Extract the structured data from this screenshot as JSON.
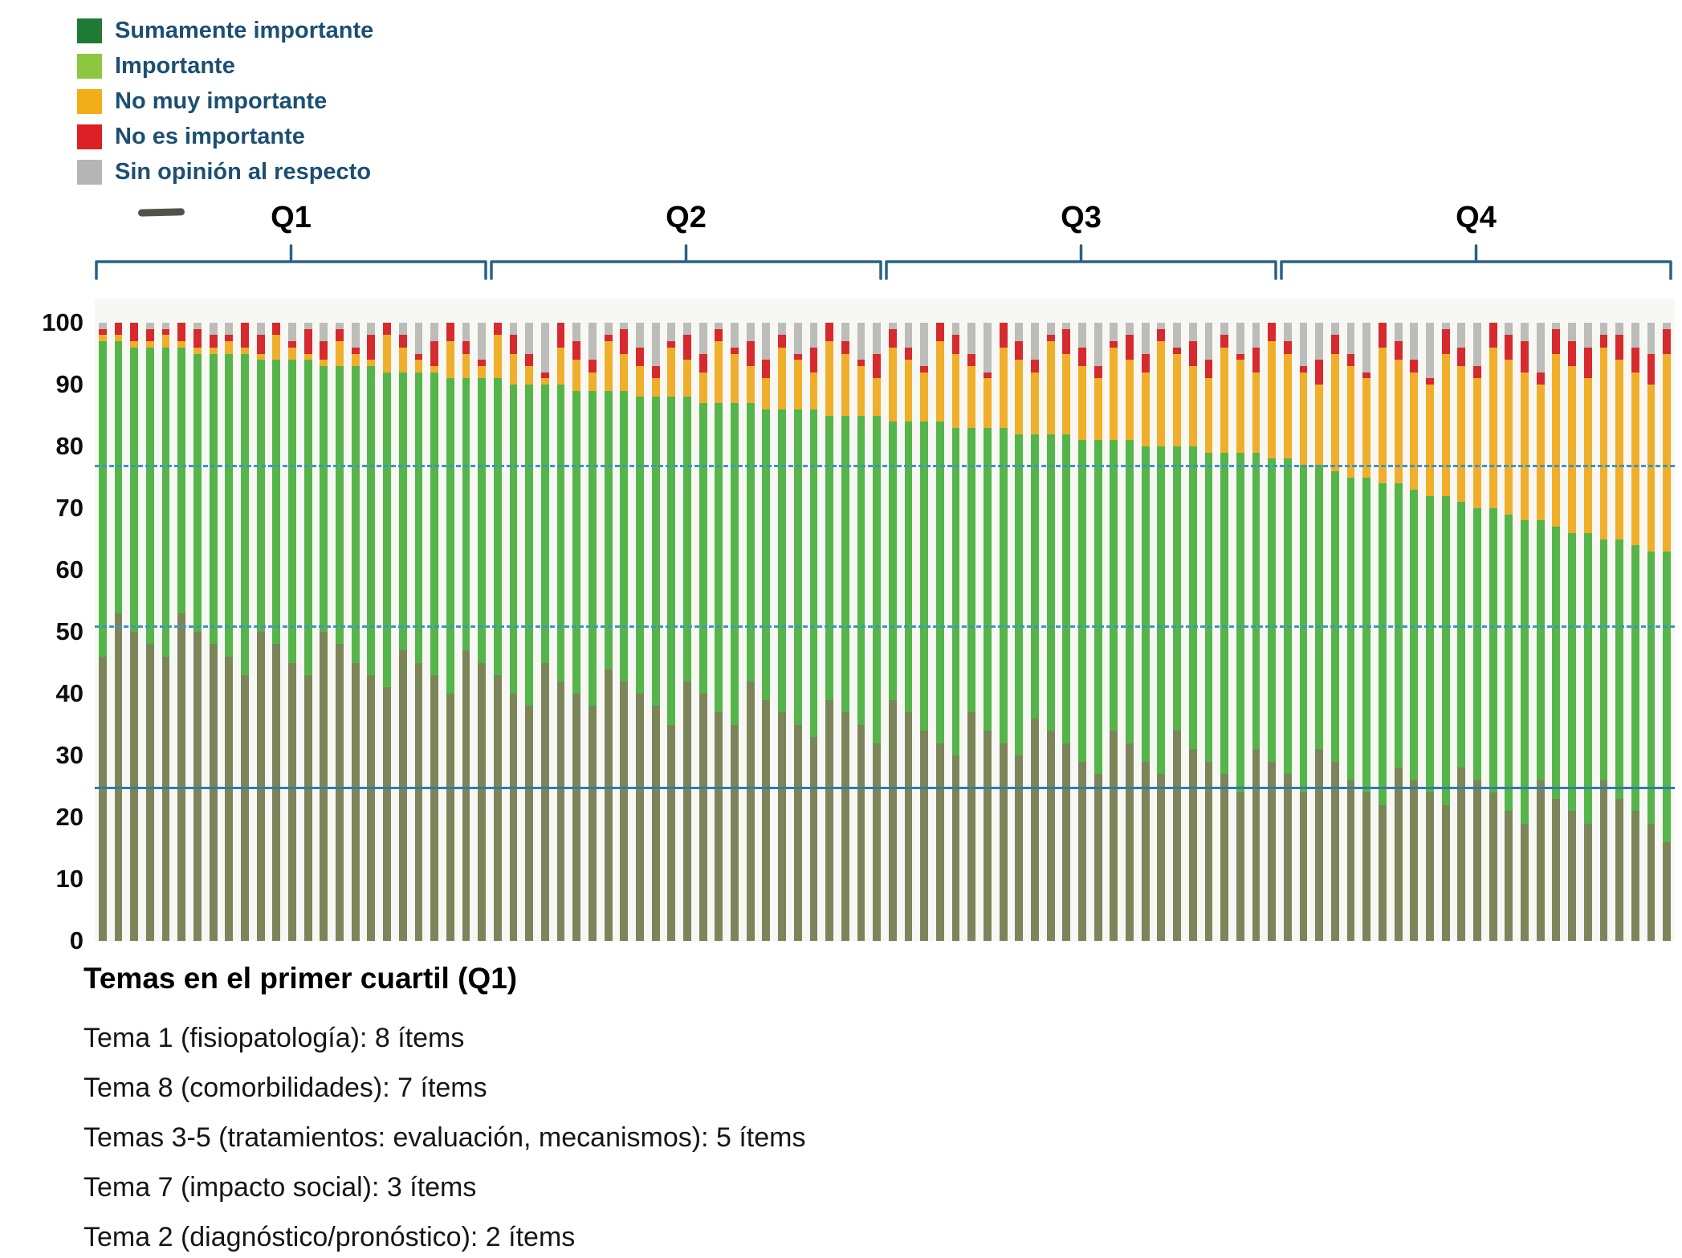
{
  "legend": {
    "items": [
      {
        "label": "Sumamente importante",
        "color": "#1e7a34"
      },
      {
        "label": "Importante",
        "color": "#8dc63f"
      },
      {
        "label": "No muy importante",
        "color": "#f2ae19"
      },
      {
        "label": "No es importante",
        "color": "#dd2026"
      },
      {
        "label": "Sin opinión al respecto",
        "color": "#b5b5b5"
      }
    ]
  },
  "chart_data": {
    "type": "bar",
    "stacked": true,
    "values_unit": "percent",
    "ylim": [
      0,
      100
    ],
    "yticks": [
      0,
      10,
      20,
      30,
      40,
      50,
      60,
      70,
      80,
      90,
      100
    ],
    "grid": false,
    "legend_position": "top-left",
    "bracket_color": "#2a6283",
    "reference_lines": [
      {
        "value": 77,
        "style": "dashed",
        "color": "#4093c4"
      },
      {
        "value": 51,
        "style": "dashed",
        "color": "#4093c4"
      },
      {
        "value": 25,
        "style": "solid",
        "color": "#2f7ca8"
      }
    ],
    "quartile_groups": [
      {
        "label": "Q1",
        "start": 0,
        "end": 24
      },
      {
        "label": "Q2",
        "start": 25,
        "end": 49
      },
      {
        "label": "Q3",
        "start": 50,
        "end": 74
      },
      {
        "label": "Q4",
        "start": 75,
        "end": 99
      }
    ],
    "series": [
      {
        "key": "sumamente-importante",
        "name": "Sumamente importante",
        "color": "#7c8559"
      },
      {
        "key": "importante",
        "name": "Importante",
        "color": "#56b54a"
      },
      {
        "key": "no-muy-importante",
        "name": "No muy importante",
        "color": "#f0af2b"
      },
      {
        "key": "no-es-importante",
        "name": "No es importante",
        "color": "#d62a2e"
      },
      {
        "key": "sin-opinion",
        "name": "Sin opinión al respecto",
        "color": "#bcbcb8"
      }
    ],
    "bars": [
      [
        46,
        51,
        1,
        1,
        1
      ],
      [
        53,
        44,
        1,
        2,
        0
      ],
      [
        50,
        46,
        1,
        3,
        0
      ],
      [
        48,
        48,
        1,
        2,
        1
      ],
      [
        46,
        50,
        2,
        1,
        1
      ],
      [
        53,
        43,
        1,
        3,
        0
      ],
      [
        50,
        45,
        1,
        3,
        1
      ],
      [
        48,
        47,
        1,
        2,
        2
      ],
      [
        46,
        49,
        2,
        1,
        2
      ],
      [
        43,
        52,
        1,
        4,
        0
      ],
      [
        50,
        44,
        1,
        3,
        2
      ],
      [
        48,
        46,
        4,
        2,
        0
      ],
      [
        45,
        49,
        2,
        1,
        3
      ],
      [
        43,
        51,
        1,
        4,
        1
      ],
      [
        50,
        43,
        1,
        3,
        3
      ],
      [
        48,
        45,
        4,
        2,
        1
      ],
      [
        45,
        48,
        2,
        1,
        4
      ],
      [
        43,
        50,
        1,
        4,
        2
      ],
      [
        41,
        51,
        6,
        2,
        0
      ],
      [
        47,
        45,
        4,
        2,
        2
      ],
      [
        45,
        47,
        2,
        1,
        5
      ],
      [
        43,
        49,
        1,
        4,
        3
      ],
      [
        40,
        51,
        6,
        3,
        0
      ],
      [
        47,
        44,
        4,
        2,
        3
      ],
      [
        45,
        46,
        2,
        1,
        6
      ],
      [
        43,
        48,
        7,
        2,
        0
      ],
      [
        40,
        50,
        5,
        3,
        2
      ],
      [
        38,
        52,
        3,
        2,
        5
      ],
      [
        45,
        45,
        1,
        1,
        8
      ],
      [
        42,
        48,
        6,
        4,
        0
      ],
      [
        40,
        49,
        5,
        3,
        3
      ],
      [
        38,
        51,
        3,
        2,
        6
      ],
      [
        44,
        45,
        8,
        1,
        2
      ],
      [
        42,
        47,
        6,
        4,
        1
      ],
      [
        40,
        48,
        5,
        3,
        4
      ],
      [
        38,
        50,
        3,
        2,
        7
      ],
      [
        35,
        53,
        8,
        1,
        3
      ],
      [
        42,
        46,
        6,
        4,
        2
      ],
      [
        40,
        47,
        5,
        3,
        5
      ],
      [
        37,
        50,
        10,
        2,
        1
      ],
      [
        35,
        52,
        8,
        1,
        4
      ],
      [
        42,
        45,
        6,
        4,
        3
      ],
      [
        39,
        47,
        5,
        3,
        6
      ],
      [
        37,
        49,
        10,
        2,
        2
      ],
      [
        35,
        51,
        8,
        1,
        5
      ],
      [
        33,
        53,
        6,
        4,
        4
      ],
      [
        39,
        46,
        12,
        3,
        0
      ],
      [
        37,
        48,
        10,
        2,
        3
      ],
      [
        35,
        50,
        8,
        1,
        6
      ],
      [
        32,
        53,
        6,
        4,
        5
      ],
      [
        39,
        45,
        12,
        3,
        1
      ],
      [
        37,
        47,
        10,
        2,
        4
      ],
      [
        34,
        50,
        8,
        1,
        7
      ],
      [
        32,
        52,
        13,
        3,
        0
      ],
      [
        30,
        53,
        12,
        3,
        2
      ],
      [
        37,
        46,
        10,
        2,
        5
      ],
      [
        34,
        49,
        8,
        1,
        8
      ],
      [
        32,
        51,
        13,
        4,
        0
      ],
      [
        30,
        52,
        12,
        3,
        3
      ],
      [
        36,
        46,
        10,
        2,
        6
      ],
      [
        34,
        48,
        15,
        1,
        2
      ],
      [
        32,
        50,
        13,
        4,
        1
      ],
      [
        29,
        52,
        12,
        3,
        4
      ],
      [
        27,
        54,
        10,
        2,
        7
      ],
      [
        34,
        47,
        15,
        1,
        3
      ],
      [
        32,
        49,
        13,
        4,
        2
      ],
      [
        29,
        51,
        12,
        3,
        5
      ],
      [
        27,
        53,
        17,
        2,
        1
      ],
      [
        34,
        46,
        15,
        1,
        4
      ],
      [
        31,
        49,
        13,
        4,
        3
      ],
      [
        29,
        50,
        12,
        3,
        6
      ],
      [
        27,
        52,
        17,
        2,
        2
      ],
      [
        24,
        55,
        15,
        1,
        5
      ],
      [
        31,
        48,
        13,
        4,
        4
      ],
      [
        29,
        49,
        19,
        3,
        0
      ],
      [
        27,
        51,
        17,
        2,
        3
      ],
      [
        24,
        53,
        15,
        1,
        7
      ],
      [
        31,
        46,
        13,
        4,
        6
      ],
      [
        29,
        47,
        19,
        3,
        2
      ],
      [
        26,
        49,
        18,
        2,
        5
      ],
      [
        24,
        51,
        16,
        1,
        8
      ],
      [
        22,
        52,
        22,
        4,
        0
      ],
      [
        28,
        46,
        20,
        3,
        3
      ],
      [
        26,
        47,
        19,
        2,
        6
      ],
      [
        24,
        48,
        18,
        1,
        9
      ],
      [
        22,
        50,
        23,
        4,
        1
      ],
      [
        28,
        43,
        22,
        3,
        4
      ],
      [
        26,
        44,
        21,
        2,
        7
      ],
      [
        24,
        46,
        26,
        4,
        0
      ],
      [
        21,
        48,
        25,
        4,
        2
      ],
      [
        19,
        49,
        24,
        5,
        3
      ],
      [
        26,
        42,
        22,
        2,
        8
      ],
      [
        23,
        44,
        28,
        4,
        1
      ],
      [
        21,
        45,
        27,
        4,
        3
      ],
      [
        19,
        47,
        25,
        5,
        4
      ],
      [
        26,
        39,
        31,
        2,
        2
      ],
      [
        23,
        42,
        29,
        4,
        2
      ],
      [
        21,
        43,
        28,
        4,
        4
      ],
      [
        19,
        44,
        27,
        5,
        5
      ],
      [
        16,
        47,
        32,
        4,
        1
      ]
    ]
  },
  "footer": {
    "title": "Temas en el primer cuartil (Q1)",
    "lines": [
      "Tema 1 (fisiopatología): 8 ítems",
      "Tema 8 (comorbilidades): 7 ítems",
      "Temas 3-5 (tratamientos: evaluación, mecanismos): 5 ítems",
      "Tema 7 (impacto social): 3 ítems",
      "Tema 2 (diagnóstico/pronóstico): 2 ítems"
    ]
  }
}
